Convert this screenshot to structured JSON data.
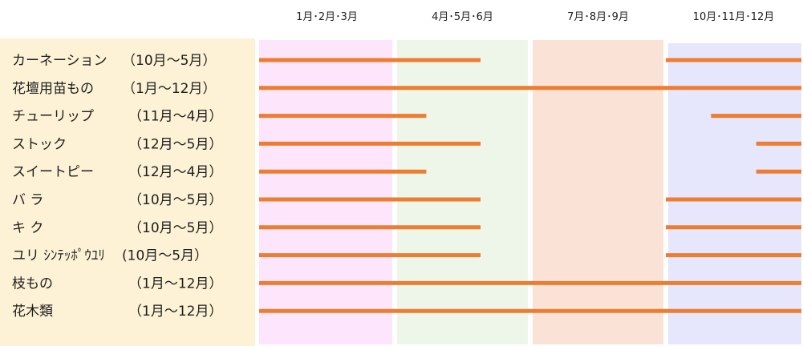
{
  "chart_data": {
    "type": "gantt",
    "title": "",
    "columns": [
      {
        "label": "1月･2月･3月",
        "months": [
          1,
          3
        ],
        "color": "#fde5fb"
      },
      {
        "label": "4月･5月･6月",
        "months": [
          4,
          6
        ],
        "color": "#eef6ea"
      },
      {
        "label": "7月･8月･9月",
        "months": [
          7,
          9
        ],
        "color": "#fae3d6"
      },
      {
        "label": "10月･11月･12月",
        "months": [
          10,
          12
        ],
        "color": "#e6e6fc"
      }
    ],
    "label_panel_color": "#fdf2d5",
    "bar_color": "#ed7d31",
    "rows": [
      {
        "name": "カーネーション",
        "period": "（10月～5月）",
        "segments": [
          [
            1.0,
            5.9
          ],
          [
            10.0,
            13.0
          ]
        ]
      },
      {
        "name": "花壇用苗もの",
        "period": "（1月～12月）",
        "segments": [
          [
            1.0,
            13.0
          ]
        ]
      },
      {
        "name": "チューリップ",
        "period": "（11月～4月）",
        "segments": [
          [
            1.0,
            4.7
          ],
          [
            11.0,
            13.0
          ]
        ]
      },
      {
        "name": "ストック",
        "period": "（12月～5月）",
        "segments": [
          [
            1.0,
            5.9
          ],
          [
            12.0,
            13.0
          ]
        ]
      },
      {
        "name": "スイートピー",
        "period": "（12月～4月）",
        "segments": [
          [
            1.0,
            4.7
          ],
          [
            12.0,
            13.0
          ]
        ]
      },
      {
        "name": "バ ラ",
        "period": "（10月～5月）",
        "segments": [
          [
            1.0,
            5.9
          ],
          [
            10.0,
            13.0
          ]
        ]
      },
      {
        "name": "キ ク",
        "period": "（10月～5月）",
        "segments": [
          [
            1.0,
            5.9
          ],
          [
            10.0,
            13.0
          ]
        ]
      },
      {
        "name": "ユリ ｼﾝﾃｯﾎﾟｳﾕﾘ",
        "period": "(10月～5月）",
        "segments": [
          [
            1.0,
            5.9
          ],
          [
            10.0,
            13.0
          ]
        ]
      },
      {
        "name": "枝もの",
        "period": "（1月～12月）",
        "segments": [
          [
            1.0,
            13.0
          ]
        ]
      },
      {
        "name": "花木類",
        "period": "（1月～12月）",
        "segments": [
          [
            1.0,
            13.0
          ]
        ]
      }
    ]
  }
}
